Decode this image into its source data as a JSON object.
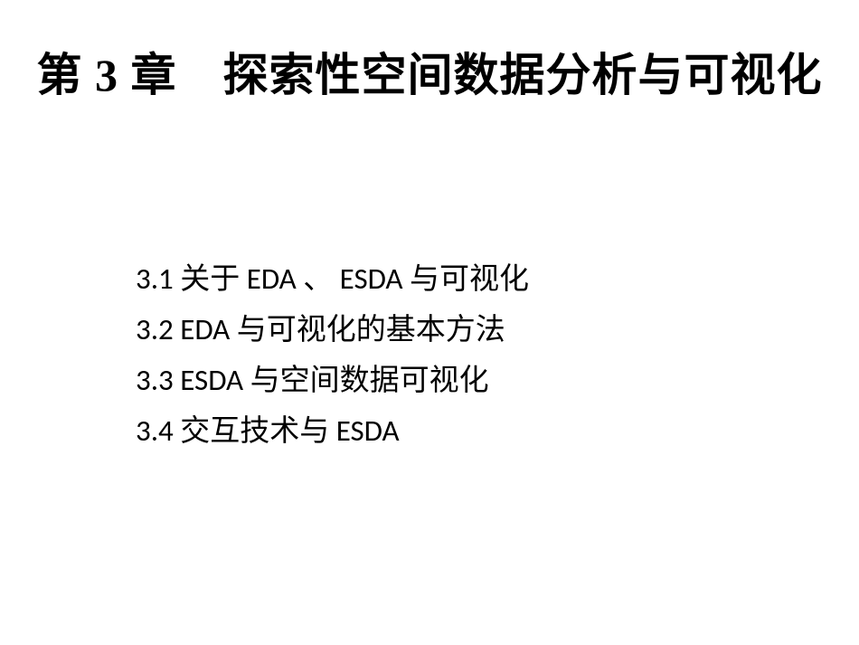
{
  "slide": {
    "title": "第 3 章　探索性空间数据分析与可视化",
    "title_fontsize": 50,
    "title_fontweight": "bold",
    "outline_fontsize": 33,
    "background_color": "#ffffff",
    "text_color": "#000000",
    "items": [
      "3.1  关于 EDA 、 ESDA 与可视化",
      "3.2 EDA 与可视化的基本方法",
      "3.3 ESDA 与空间数据可视化",
      "3.4  交互技术与 ESDA"
    ]
  }
}
